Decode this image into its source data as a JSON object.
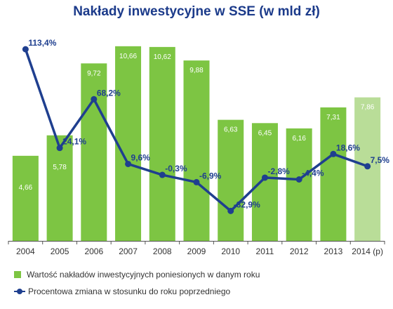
{
  "chart_data": {
    "type": "bar",
    "title": "Nakłady inwestycyjne w SSE (w mld zł)",
    "categories": [
      "2004",
      "2005",
      "2006",
      "2007",
      "2008",
      "2009",
      "2010",
      "2011",
      "2012",
      "2013",
      "2014 (p)"
    ],
    "bar_labels": [
      "4,66",
      "5,78",
      "9,72",
      "10,66",
      "10,62",
      "9,88",
      "6,63",
      "6,45",
      "6,16",
      "7,31",
      "7,86"
    ],
    "line_labels": [
      "113,4%",
      "24,1%",
      "68,2%",
      "9,6%",
      "-0,3%",
      "-6,9%",
      "-32,9%",
      "-2,8%",
      "-4,4%",
      "18,6%",
      "7,5%"
    ],
    "series": [
      {
        "name": "Wartość nakładów inwestycyjnych poniesionych w danym roku",
        "type": "bar",
        "values": [
          4.66,
          5.78,
          9.72,
          10.66,
          10.62,
          9.88,
          6.63,
          6.45,
          6.16,
          7.31,
          7.86
        ],
        "color": "#7dc543",
        "projected_color": "#b9dd98"
      },
      {
        "name": "Procentowa zmiana w stosunku do roku poprzedniego",
        "type": "line",
        "values": [
          113.4,
          24.1,
          68.2,
          9.6,
          -0.3,
          -6.9,
          -32.9,
          -2.8,
          -4.4,
          18.6,
          7.5
        ],
        "color": "#1f3f8f"
      }
    ],
    "bar_ylim": [
      0,
      11.5
    ],
    "line_ylim": [
      -60,
      130
    ],
    "grid": false,
    "legend_position": "bottom-left"
  },
  "colors": {
    "title": "#1b3a8a",
    "axis": "#555555"
  }
}
